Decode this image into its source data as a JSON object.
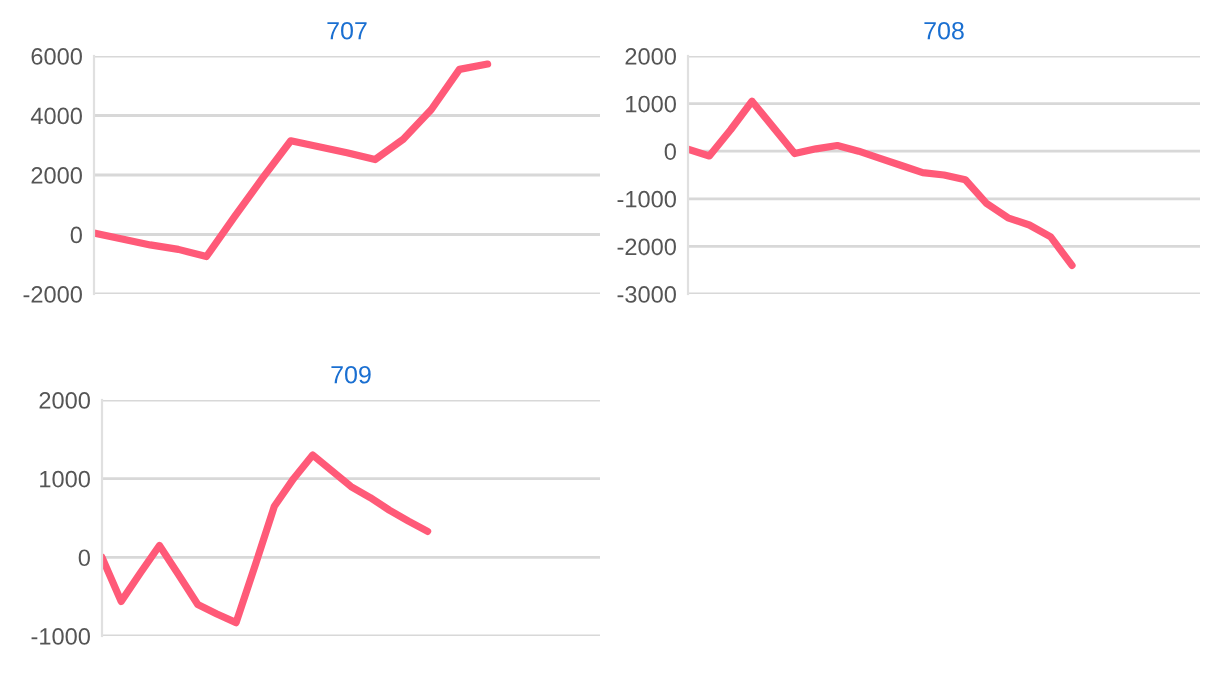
{
  "chart_data": [
    {
      "type": "line",
      "title": "707",
      "categories": [
        null,
        null,
        null,
        null,
        null,
        null,
        null,
        null,
        null,
        null,
        null,
        null,
        null,
        null,
        null,
        null,
        null,
        null,
        null
      ],
      "series": [
        {
          "color": "#ff5a78",
          "values": [
            50,
            -150,
            -350,
            -500,
            -740,
            600,
            1900,
            3150,
            2950,
            2750,
            2520,
            3200,
            4200,
            5550,
            5730,
            null,
            null,
            null,
            null
          ]
        }
      ],
      "ylim": [
        -2000,
        6000
      ],
      "yticks": [
        -2000,
        0,
        2000,
        4000,
        6000
      ],
      "grid": "y",
      "tick_labels": "y",
      "marker": "none",
      "line_style": "solid"
    },
    {
      "type": "line",
      "title": "708",
      "categories": [
        null,
        null,
        null,
        null,
        null,
        null,
        null,
        null,
        null,
        null,
        null,
        null,
        null,
        null,
        null,
        null,
        null,
        null,
        null,
        null,
        null,
        null,
        null,
        null,
        null
      ],
      "series": [
        {
          "color": "#ff5a78",
          "values": [
            40,
            -100,
            450,
            1050,
            500,
            -50,
            50,
            120,
            0,
            -150,
            -300,
            -450,
            -500,
            -600,
            -1100,
            -1400,
            -1550,
            -1800,
            -2400,
            null,
            null,
            null,
            null,
            null,
            null
          ]
        }
      ],
      "ylim": [
        -3000,
        2000
      ],
      "yticks": [
        -3000,
        -2000,
        -1000,
        0,
        1000,
        2000
      ],
      "grid": "y",
      "tick_labels": "y",
      "marker": "none",
      "line_style": "solid"
    },
    {
      "type": "line",
      "title": "709",
      "categories": [
        null,
        null,
        null,
        null,
        null,
        null,
        null,
        null,
        null,
        null,
        null,
        null,
        null,
        null,
        null,
        null,
        null,
        null,
        null,
        null,
        null,
        null,
        null,
        null,
        null,
        null,
        null
      ],
      "series": [
        {
          "color": "#ff5a78",
          "values": [
            0,
            -560,
            -200,
            150,
            -220,
            -600,
            -720,
            -830,
            -100,
            650,
            1000,
            1300,
            1100,
            900,
            760,
            600,
            460,
            330,
            null,
            null,
            null,
            null,
            null,
            null,
            null,
            null,
            null
          ]
        }
      ],
      "ylim": [
        -1000,
        2000
      ],
      "yticks": [
        -1000,
        0,
        1000,
        2000
      ],
      "grid": "y",
      "tick_labels": "y",
      "marker": "none",
      "line_style": "solid"
    }
  ]
}
